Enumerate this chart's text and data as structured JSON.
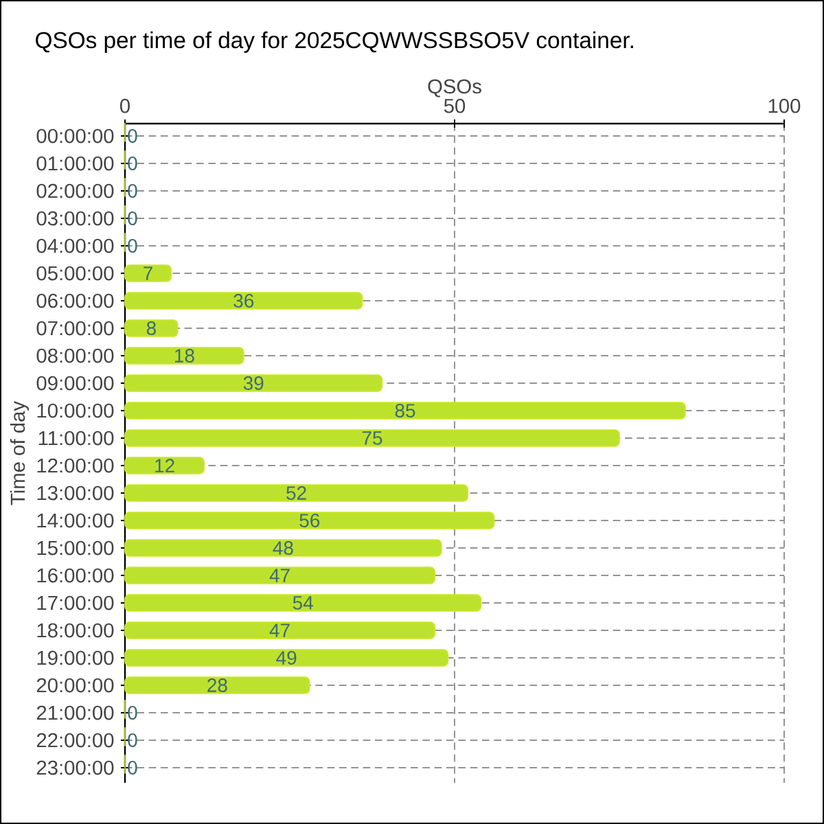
{
  "chart_data": {
    "type": "bar",
    "orientation": "horizontal",
    "title": "QSOs per time of day for 2025CQWWSSBSO5V container.",
    "xlabel": "QSOs",
    "ylabel": "Time of day",
    "categories": [
      "00:00:00",
      "01:00:00",
      "02:00:00",
      "03:00:00",
      "04:00:00",
      "05:00:00",
      "06:00:00",
      "07:00:00",
      "08:00:00",
      "09:00:00",
      "10:00:00",
      "11:00:00",
      "12:00:00",
      "13:00:00",
      "14:00:00",
      "15:00:00",
      "16:00:00",
      "17:00:00",
      "18:00:00",
      "19:00:00",
      "20:00:00",
      "21:00:00",
      "22:00:00",
      "23:00:00"
    ],
    "values": [
      0,
      0,
      0,
      0,
      0,
      7,
      36,
      8,
      18,
      39,
      85,
      75,
      12,
      52,
      56,
      48,
      47,
      54,
      47,
      49,
      28,
      0,
      0,
      0
    ],
    "color": "#bde22e",
    "xlim": [
      0,
      100
    ],
    "xticks": [
      0,
      50,
      100
    ],
    "grid": true,
    "data_labels": true
  }
}
